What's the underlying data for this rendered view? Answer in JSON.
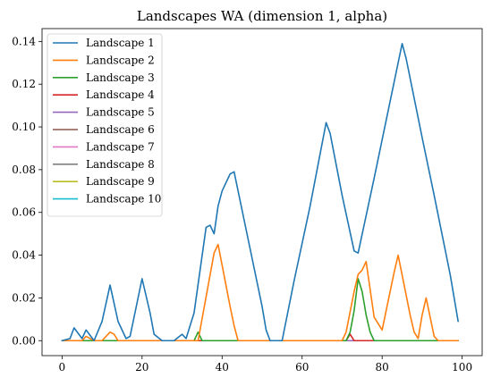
{
  "chart_data": {
    "type": "line",
    "title": "Landscapes WA (dimension 1, alpha)",
    "xlabel": "",
    "ylabel": "",
    "xlim": [
      -5,
      105
    ],
    "ylim": [
      -0.007,
      0.146
    ],
    "xticks": [
      0,
      20,
      40,
      60,
      80,
      100
    ],
    "xtick_labels": [
      "0",
      "20",
      "40",
      "60",
      "80",
      "100"
    ],
    "yticks": [
      0.0,
      0.02,
      0.04,
      0.06,
      0.08,
      0.1,
      0.12,
      0.14
    ],
    "ytick_labels": [
      "0.00",
      "0.02",
      "0.04",
      "0.06",
      "0.08",
      "0.10",
      "0.12",
      "0.14"
    ],
    "grid": false,
    "legend_position": "top-left",
    "series": [
      {
        "name": "Landscape 1",
        "color": "#1f77b4",
        "x": [
          0,
          2,
          3,
          5,
          6,
          8,
          10,
          12,
          14,
          16,
          17,
          20,
          22,
          23,
          25,
          28,
          30,
          31,
          33,
          36,
          37,
          38,
          39,
          40,
          42,
          43,
          46,
          50,
          51,
          52,
          55,
          58,
          62,
          66,
          67,
          70,
          73,
          74,
          78,
          82,
          85,
          86,
          90,
          93,
          97,
          99
        ],
        "y": [
          0,
          0.001,
          0.006,
          0.001,
          0.005,
          0,
          0.009,
          0.026,
          0.009,
          0.001,
          0.002,
          0.029,
          0.013,
          0.003,
          0,
          0,
          0.003,
          0.001,
          0.013,
          0.053,
          0.054,
          0.05,
          0.063,
          0.07,
          0.078,
          0.079,
          0.052,
          0.016,
          0.005,
          0,
          0,
          0.028,
          0.063,
          0.102,
          0.097,
          0.068,
          0.042,
          0.041,
          0.076,
          0.112,
          0.139,
          0.132,
          0.095,
          0.068,
          0.031,
          0.009
        ]
      },
      {
        "name": "Landscape 2",
        "color": "#ff7f0e",
        "x": [
          0,
          5,
          6,
          8,
          10,
          12,
          13,
          14,
          34,
          38,
          39,
          42,
          43,
          44,
          70,
          71,
          73,
          74,
          75,
          76,
          78,
          80,
          83,
          84,
          87,
          88,
          89,
          90,
          91,
          93,
          94,
          99
        ],
        "y": [
          0,
          0,
          0.002,
          0,
          0,
          0.004,
          0.003,
          0,
          0,
          0.041,
          0.045,
          0.016,
          0.007,
          0,
          0,
          0.004,
          0.023,
          0.031,
          0.033,
          0.037,
          0.011,
          0.005,
          0.032,
          0.04,
          0.012,
          0.004,
          0.001,
          0.012,
          0.02,
          0.002,
          0,
          0
        ]
      },
      {
        "name": "Landscape 3",
        "color": "#2ca02c",
        "x": [
          0,
          33,
          34,
          35,
          71,
          72,
          73,
          74,
          75,
          76,
          77,
          78,
          99
        ],
        "y": [
          0,
          0,
          0.004,
          0,
          0,
          0.004,
          0.014,
          0.029,
          0.023,
          0.012,
          0.004,
          0,
          0
        ]
      },
      {
        "name": "Landscape 4",
        "color": "#d62728",
        "x": [
          0,
          71,
          72,
          73,
          99
        ],
        "y": [
          0,
          0,
          0.003,
          0,
          0
        ]
      },
      {
        "name": "Landscape 5",
        "color": "#9467bd",
        "x": [
          0,
          99
        ],
        "y": [
          0,
          0
        ]
      },
      {
        "name": "Landscape 6",
        "color": "#8c564b",
        "x": [
          0,
          99
        ],
        "y": [
          0,
          0
        ]
      },
      {
        "name": "Landscape 7",
        "color": "#e377c2",
        "x": [
          0,
          99
        ],
        "y": [
          0,
          0
        ]
      },
      {
        "name": "Landscape 8",
        "color": "#7f7f7f",
        "x": [
          0,
          99
        ],
        "y": [
          0,
          0
        ]
      },
      {
        "name": "Landscape 9",
        "color": "#bcbd22",
        "x": [
          0,
          99
        ],
        "y": [
          0,
          0
        ]
      },
      {
        "name": "Landscape 10",
        "color": "#17becf",
        "x": [
          0,
          99
        ],
        "y": [
          0,
          0
        ]
      }
    ]
  }
}
